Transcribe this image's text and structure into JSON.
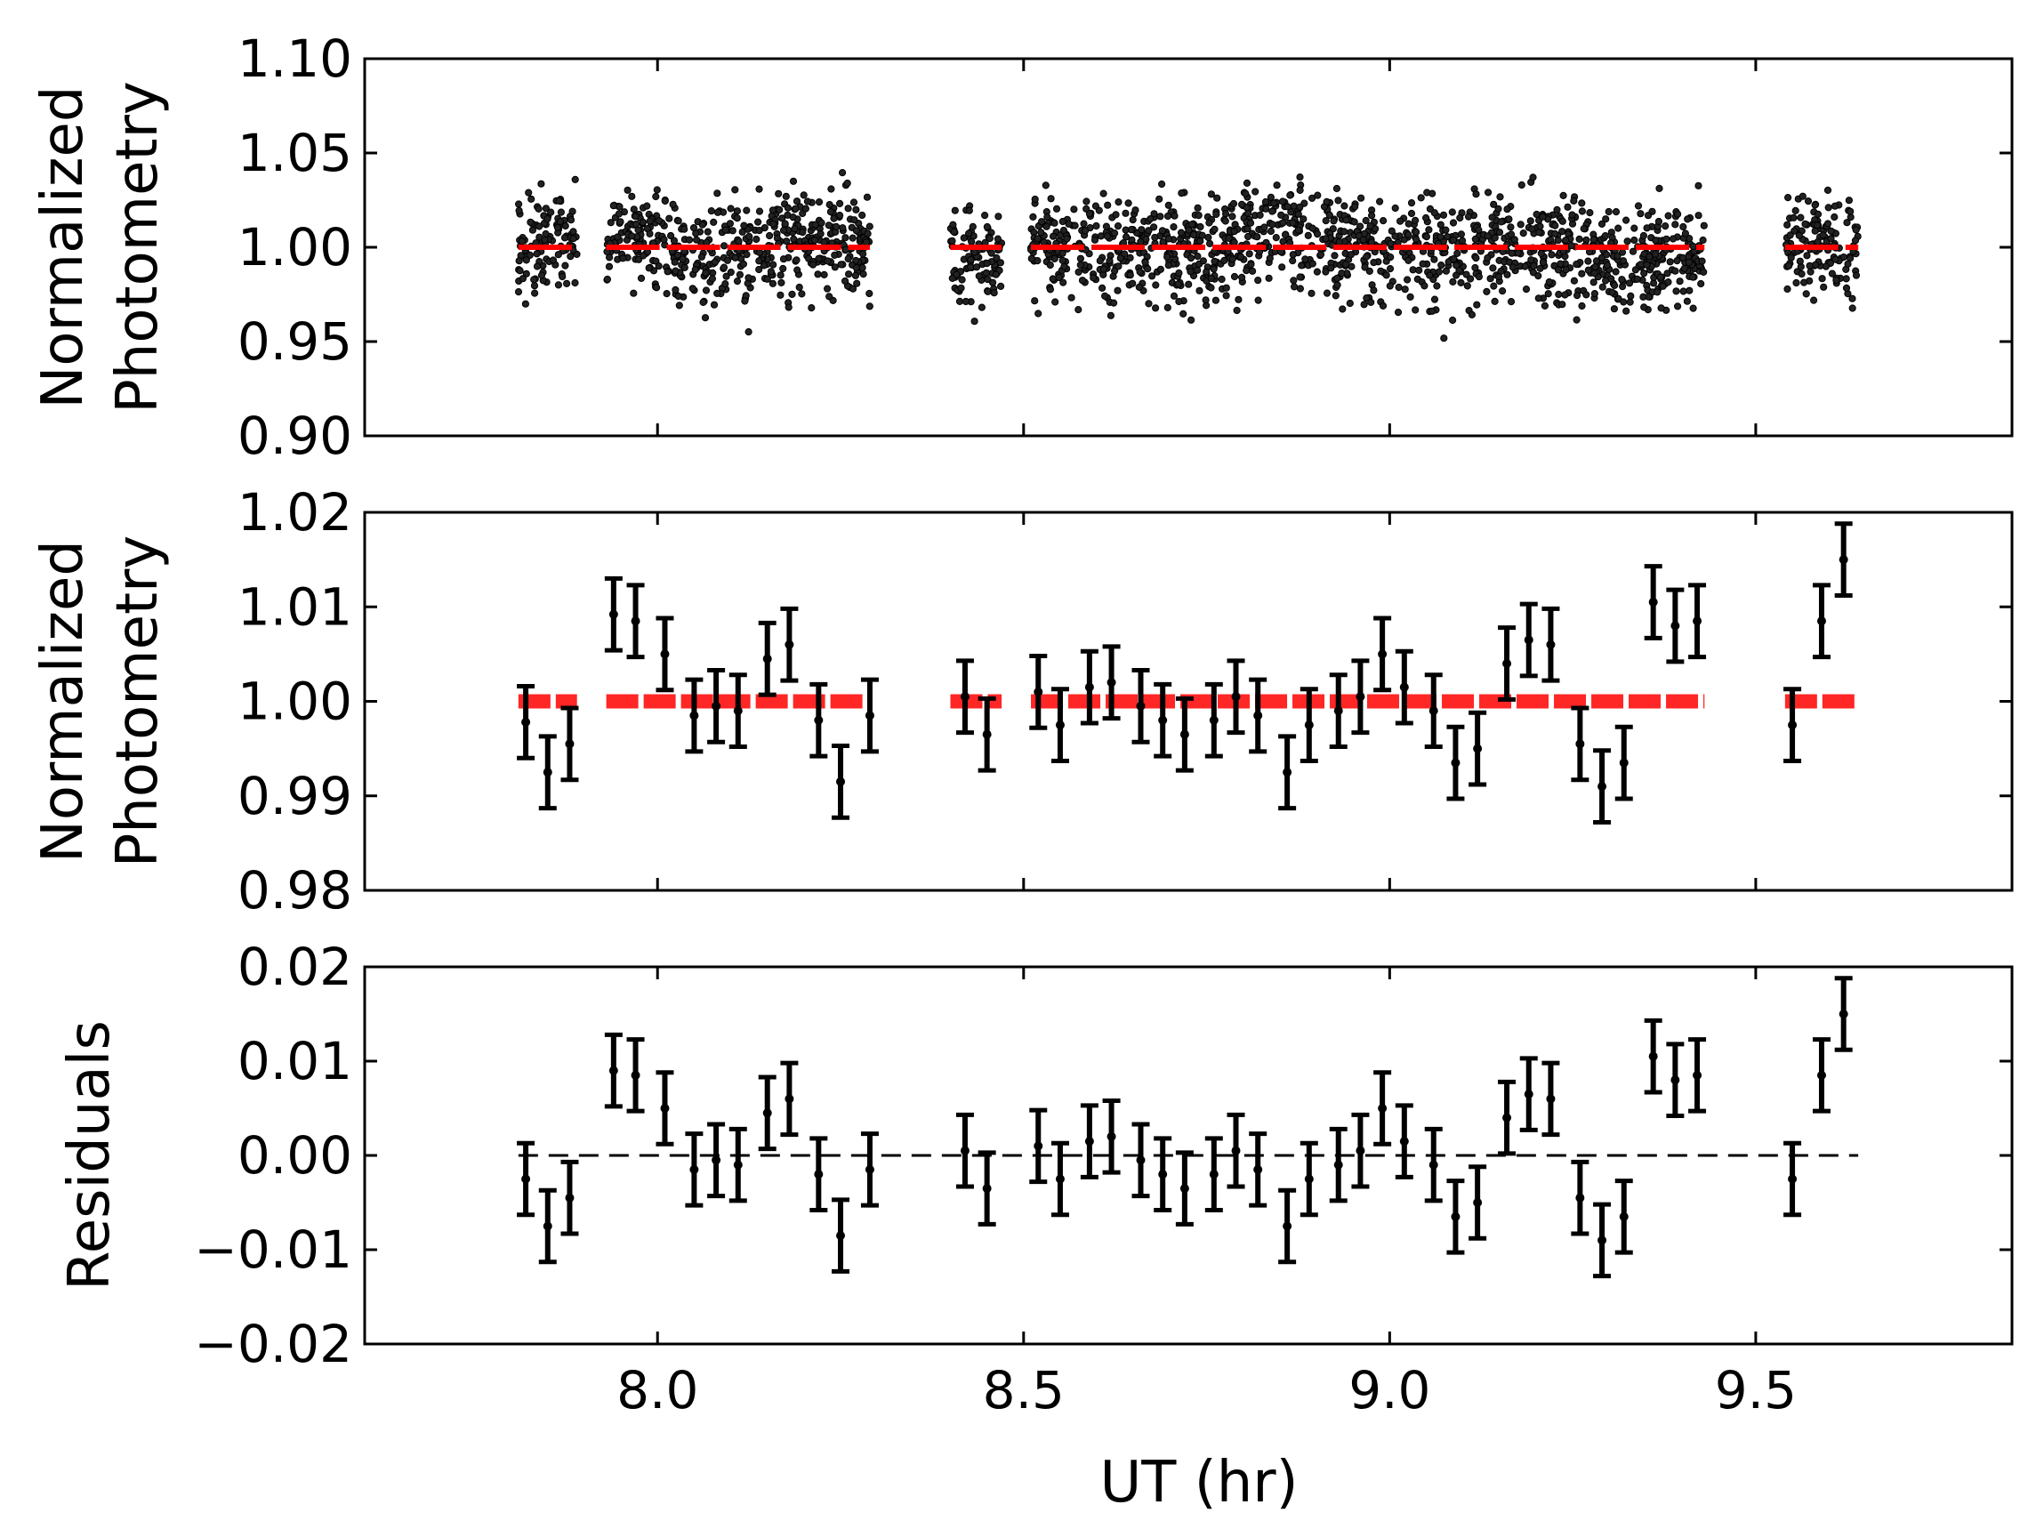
{
  "chart_data": {
    "type": "scatter",
    "xlabel": "UT (hr)",
    "xlim": [
      7.6,
      9.85
    ],
    "xticks": [
      "8.0",
      "8.5",
      "9.0",
      "9.5"
    ],
    "xtick_values": [
      8.0,
      8.5,
      9.0,
      9.5
    ],
    "colors": {
      "data": "#000000",
      "model": "#ff0000",
      "zero_line": "#000000"
    },
    "binned_x": [
      7.82,
      7.85,
      7.88,
      7.94,
      7.97,
      8.01,
      8.05,
      8.08,
      8.11,
      8.15,
      8.18,
      8.22,
      8.25,
      8.29,
      8.42,
      8.45,
      8.52,
      8.55,
      8.59,
      8.62,
      8.66,
      8.69,
      8.72,
      8.76,
      8.79,
      8.82,
      8.86,
      8.89,
      8.93,
      8.96,
      8.99,
      9.02,
      9.06,
      9.09,
      9.12,
      9.16,
      9.19,
      9.22,
      9.26,
      9.29,
      9.32,
      9.36,
      9.39,
      9.42,
      9.55,
      9.59,
      9.62
    ],
    "model_segments": [
      [
        7.81,
        7.89
      ],
      [
        7.93,
        8.29
      ],
      [
        8.4,
        8.47
      ],
      [
        8.51,
        9.43
      ],
      [
        9.54,
        9.64
      ]
    ],
    "panels": [
      {
        "name": "raw",
        "ylabel": [
          "Normalized",
          "Photometry"
        ],
        "ylim": [
          0.9,
          1.1
        ],
        "yticks": [
          "0.90",
          "0.95",
          "1.00",
          "1.05",
          "1.10"
        ],
        "ytick_values": [
          0.9,
          0.95,
          1.0,
          1.05,
          1.1
        ],
        "series": [
          {
            "name": "unbinned photometry",
            "kind": "scatter",
            "scatter": 0.014,
            "segments": [
              [
                7.81,
                7.89
              ],
              [
                7.93,
                8.29
              ],
              [
                8.4,
                8.47
              ],
              [
                8.51,
                9.43
              ],
              [
                9.54,
                9.64
              ]
            ]
          },
          {
            "name": "transit model",
            "kind": "line",
            "y": 1.0
          }
        ]
      },
      {
        "name": "binned",
        "ylabel": [
          "Normalized",
          "Photometry"
        ],
        "ylim": [
          0.98,
          1.02
        ],
        "yticks": [
          "0.98",
          "0.99",
          "1.00",
          "1.01",
          "1.02"
        ],
        "ytick_values": [
          0.98,
          0.99,
          1.0,
          1.01,
          1.02
        ],
        "series": [
          {
            "name": "binned photometry",
            "kind": "errorbar",
            "y": [
              0.9978,
              0.9925,
              0.9955,
              1.0092,
              1.0085,
              1.005,
              0.9985,
              0.9995,
              0.999,
              1.0045,
              1.006,
              0.998,
              0.9915,
              0.9985,
              1.0005,
              0.9965,
              1.001,
              0.9975,
              1.0015,
              1.002,
              0.9995,
              0.998,
              0.9965,
              0.998,
              1.0005,
              0.9985,
              0.9925,
              0.9975,
              0.999,
              1.0005,
              1.005,
              1.0015,
              0.999,
              0.9935,
              0.995,
              1.004,
              1.0065,
              1.006,
              0.9955,
              0.991,
              0.9935,
              1.0105,
              1.008,
              1.0085,
              0.9975,
              1.0085,
              1.015
            ],
            "yerr": 0.0038
          },
          {
            "name": "transit model",
            "kind": "line",
            "y": 1.0
          }
        ]
      },
      {
        "name": "residuals",
        "ylabel": [
          "Residuals"
        ],
        "ylim": [
          -0.02,
          0.02
        ],
        "yticks": [
          "0.02",
          "0.01",
          "0.00",
          "−0.01",
          "−0.02"
        ],
        "ytick_values": [
          0.02,
          0.01,
          0.0,
          -0.01,
          -0.02
        ],
        "series": [
          {
            "name": "residuals",
            "kind": "errorbar",
            "y": [
              -0.0025,
              -0.0075,
              -0.0045,
              0.009,
              0.0085,
              0.005,
              -0.0015,
              -0.0005,
              -0.001,
              0.0045,
              0.006,
              -0.002,
              -0.0085,
              -0.0015,
              0.0005,
              -0.0035,
              0.001,
              -0.0025,
              0.0015,
              0.002,
              -0.0005,
              -0.002,
              -0.0035,
              -0.002,
              0.0005,
              -0.0015,
              -0.0075,
              -0.0025,
              -0.001,
              0.0005,
              0.005,
              0.0015,
              -0.001,
              -0.0065,
              -0.005,
              0.004,
              0.0065,
              0.006,
              -0.0045,
              -0.009,
              -0.0065,
              0.0105,
              0.008,
              0.0085,
              -0.0025,
              0.0085,
              0.015
            ],
            "yerr": 0.0038
          },
          {
            "name": "zero line",
            "kind": "dashed-line",
            "y": 0.0
          }
        ]
      }
    ]
  }
}
